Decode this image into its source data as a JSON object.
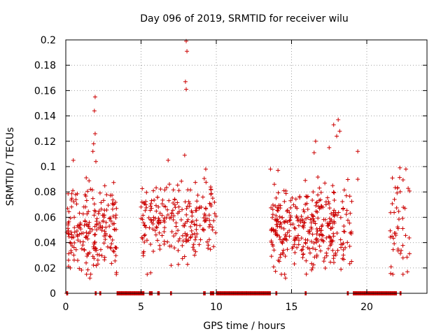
{
  "chart_data": {
    "type": "scatter",
    "title": "Day 096 of 2019, SRMTID for receiver wilu",
    "xlabel": "GPS time / hours",
    "ylabel": "SRMTID / TECUs",
    "xlim": [
      0,
      24
    ],
    "ylim": [
      0,
      0.2
    ],
    "x_ticks": [
      0,
      5,
      10,
      15,
      20
    ],
    "x_tick_labels": [
      "0",
      "5",
      "10",
      "15",
      "20"
    ],
    "y_ticks": [
      0,
      0.02,
      0.04,
      0.06,
      0.08,
      0.1,
      0.12,
      0.14,
      0.16,
      0.18,
      0.2
    ],
    "y_tick_labels": [
      "0",
      "0.02",
      "0.04",
      "0.06",
      "0.08",
      "0.1",
      "0.12",
      "0.14",
      "0.16",
      "0.18",
      "0.2"
    ],
    "grid": true,
    "marker": "+",
    "series": [
      {
        "name": "SRMTID",
        "color": "#cc0000",
        "clusters": [
          {
            "x_start": 0.05,
            "x_end": 3.4,
            "y_center": 0.052,
            "y_spread": 0.016,
            "count": 210
          },
          {
            "x_start": 5.0,
            "x_end": 10.0,
            "y_center": 0.058,
            "y_spread": 0.015,
            "count": 230
          },
          {
            "x_start": 13.6,
            "x_end": 19.0,
            "y_center": 0.05,
            "y_spread": 0.017,
            "count": 330
          },
          {
            "x_start": 21.5,
            "x_end": 22.9,
            "y_center": 0.055,
            "y_spread": 0.017,
            "count": 45
          }
        ],
        "peaks": [
          {
            "x": 8.0,
            "y": 0.199
          },
          {
            "x": 8.05,
            "y": 0.191
          },
          {
            "x": 7.95,
            "y": 0.167
          },
          {
            "x": 8.0,
            "y": 0.161
          },
          {
            "x": 1.95,
            "y": 0.155
          },
          {
            "x": 1.9,
            "y": 0.144
          },
          {
            "x": 1.95,
            "y": 0.126
          },
          {
            "x": 1.85,
            "y": 0.118
          },
          {
            "x": 1.8,
            "y": 0.112
          },
          {
            "x": 2.0,
            "y": 0.104
          },
          {
            "x": 18.1,
            "y": 0.137
          },
          {
            "x": 17.8,
            "y": 0.133
          },
          {
            "x": 18.2,
            "y": 0.128
          },
          {
            "x": 18.0,
            "y": 0.124
          },
          {
            "x": 16.6,
            "y": 0.12
          },
          {
            "x": 17.5,
            "y": 0.115
          },
          {
            "x": 19.4,
            "y": 0.112
          },
          {
            "x": 16.5,
            "y": 0.111
          },
          {
            "x": 7.9,
            "y": 0.109
          },
          {
            "x": 6.8,
            "y": 0.105
          },
          {
            "x": 0.5,
            "y": 0.105
          },
          {
            "x": 22.2,
            "y": 0.099
          },
          {
            "x": 22.6,
            "y": 0.098
          },
          {
            "x": 13.6,
            "y": 0.098
          },
          {
            "x": 14.1,
            "y": 0.097
          },
          {
            "x": 9.3,
            "y": 0.098
          },
          {
            "x": 21.7,
            "y": 0.091
          },
          {
            "x": 19.4,
            "y": 0.09
          },
          {
            "x": 1.6,
            "y": 0.012
          },
          {
            "x": 14.6,
            "y": 0.012
          },
          {
            "x": 22.7,
            "y": 0.017
          },
          {
            "x": 0.3,
            "y": 0.02
          },
          {
            "x": 7.0,
            "y": 0.022
          },
          {
            "x": 16.4,
            "y": 0.02
          }
        ],
        "zero_segments": [
          [
            0.05,
            0.15
          ],
          [
            1.95,
            2.05
          ],
          [
            2.25,
            2.35
          ],
          [
            3.4,
            5.2
          ],
          [
            5.55,
            5.75
          ],
          [
            6.1,
            6.25
          ],
          [
            6.95,
            7.05
          ],
          [
            9.15,
            9.3
          ],
          [
            9.6,
            9.85
          ],
          [
            10.0,
            13.6
          ],
          [
            13.95,
            14.05
          ],
          [
            15.9,
            16.0
          ],
          [
            18.7,
            18.8
          ],
          [
            19.1,
            22.0
          ],
          [
            22.2,
            22.3
          ]
        ]
      }
    ]
  }
}
